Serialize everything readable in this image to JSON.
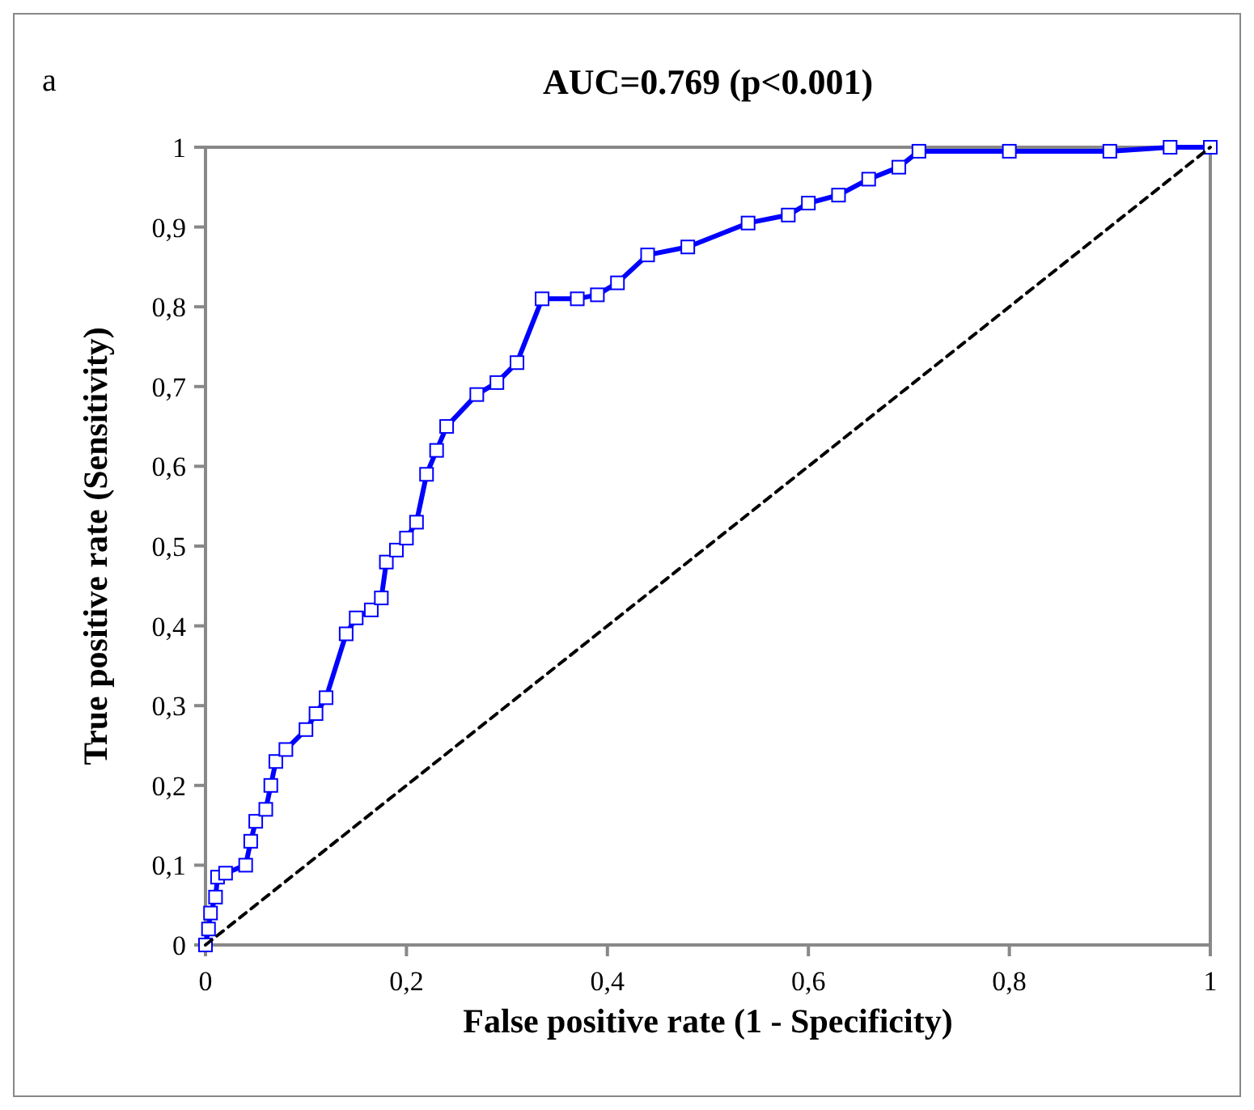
{
  "chart_data": {
    "type": "line",
    "title": "AUC=0.769 (p<0.001)",
    "annotations": [
      "a"
    ],
    "xlabel": "False positive rate (1 - Specificity)",
    "ylabel": "True positive rate (Sensitivity)",
    "xlim": [
      0,
      1
    ],
    "ylim": [
      0,
      1
    ],
    "xticks": [
      0,
      {
        "value": 0.2,
        "label": "0,2"
      },
      {
        "value": 0.4,
        "label": "0,4"
      },
      {
        "value": 0.6,
        "label": "0,6"
      },
      {
        "value": 0.8,
        "label": "0,8"
      },
      1
    ],
    "yticks": [
      0,
      {
        "value": 0.1,
        "label": "0,1"
      },
      {
        "value": 0.2,
        "label": "0,2"
      },
      {
        "value": 0.3,
        "label": "0,3"
      },
      {
        "value": 0.4,
        "label": "0,4"
      },
      {
        "value": 0.5,
        "label": "0,5"
      },
      {
        "value": 0.6,
        "label": "0,6"
      },
      {
        "value": 0.7,
        "label": "0,7"
      },
      {
        "value": 0.8,
        "label": "0,8"
      },
      {
        "value": 0.9,
        "label": "0,9"
      },
      1
    ],
    "series": [
      {
        "color": "#0000ff",
        "marker": "square",
        "line_style": "solid",
        "x": [
          0,
          0.003,
          0.005,
          0.01,
          0.012,
          0.02,
          0.04,
          0.045,
          0.05,
          0.06,
          0.065,
          0.07,
          0.08,
          0.1,
          0.11,
          0.12,
          0.14,
          0.15,
          0.165,
          0.175,
          0.18,
          0.19,
          0.2,
          0.21,
          0.22,
          0.23,
          0.24,
          0.27,
          0.29,
          0.31,
          0.335,
          0.37,
          0.39,
          0.41,
          0.44,
          0.48,
          0.54,
          0.58,
          0.6,
          0.63,
          0.66,
          0.69,
          0.71,
          0.8,
          0.9,
          0.96,
          1
        ],
        "values": [
          0,
          0.02,
          0.04,
          0.06,
          0.085,
          0.09,
          0.1,
          0.13,
          0.155,
          0.17,
          0.2,
          0.23,
          0.245,
          0.27,
          0.29,
          0.31,
          0.39,
          0.41,
          0.42,
          0.435,
          0.48,
          0.495,
          0.51,
          0.53,
          0.59,
          0.62,
          0.65,
          0.69,
          0.705,
          0.73,
          0.81,
          0.81,
          0.815,
          0.83,
          0.865,
          0.875,
          0.905,
          0.915,
          0.93,
          0.94,
          0.96,
          0.975,
          0.995,
          0.995,
          0.995,
          1,
          1
        ]
      },
      {
        "color": "#000000",
        "marker": "none",
        "line_style": "dashed",
        "x": [
          0,
          1
        ],
        "values": [
          0,
          1
        ]
      }
    ]
  }
}
